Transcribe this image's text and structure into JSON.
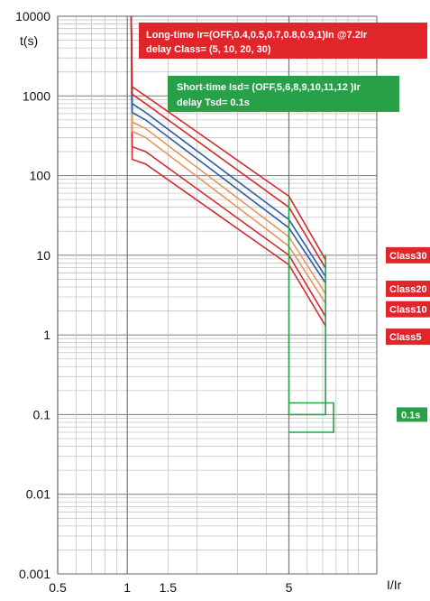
{
  "chart_data": {
    "type": "line",
    "title": "",
    "xlabel": "I/Ir",
    "ylabel": "t(s)",
    "x_scale": "log",
    "y_scale": "log",
    "xlim": [
      0.5,
      12
    ],
    "ylim": [
      0.001,
      10000
    ],
    "grid": true,
    "x_ticks": [
      {
        "value": 0.5,
        "label": "0.5"
      },
      {
        "value": 1,
        "label": "1"
      },
      {
        "value": 1.5,
        "label": "1.5"
      },
      {
        "value": 5,
        "label": "5"
      }
    ],
    "y_ticks": [
      {
        "value": 10000,
        "label": "10000"
      },
      {
        "value": 1000,
        "label": "1000"
      },
      {
        "value": 100,
        "label": "100"
      },
      {
        "value": 10,
        "label": "10"
      },
      {
        "value": 1,
        "label": "1"
      },
      {
        "value": 0.1,
        "label": "0.1"
      },
      {
        "value": 0.01,
        "label": "0.01"
      },
      {
        "value": 0.001,
        "label": "0.001"
      }
    ],
    "series": [
      {
        "color": "#d12b2e",
        "values": [
          [
            1.04,
            10000
          ],
          [
            1.05,
            160
          ],
          [
            1.2,
            140
          ],
          [
            5,
            7.6
          ],
          [
            7.2,
            1.3
          ]
        ]
      },
      {
        "color": "#d12b2e",
        "values": [
          [
            1.04,
            10000
          ],
          [
            1.05,
            230
          ],
          [
            1.2,
            200
          ],
          [
            5,
            10
          ],
          [
            7.2,
            1.7
          ]
        ]
      },
      {
        "color": "#e8945a",
        "values": [
          [
            1.04,
            10000
          ],
          [
            1.05,
            360
          ],
          [
            1.2,
            300
          ],
          [
            5,
            13
          ],
          [
            7.2,
            2.5
          ]
        ]
      },
      {
        "color": "#e8945a",
        "values": [
          [
            1.04,
            10000
          ],
          [
            1.05,
            470
          ],
          [
            1.2,
            390
          ],
          [
            5,
            17
          ],
          [
            7.2,
            3.3
          ]
        ]
      },
      {
        "color": "#2a5ca8",
        "values": [
          [
            1.04,
            10000
          ],
          [
            1.05,
            620
          ],
          [
            1.2,
            500
          ],
          [
            5,
            22
          ],
          [
            7.2,
            4.5
          ]
        ]
      },
      {
        "color": "#2a5ca8",
        "values": [
          [
            1.04,
            10000
          ],
          [
            1.05,
            800
          ],
          [
            1.2,
            620
          ],
          [
            5,
            28
          ],
          [
            7.2,
            5.4
          ]
        ]
      },
      {
        "color": "#d12b2e",
        "values": [
          [
            1.04,
            10000
          ],
          [
            1.05,
            1050
          ],
          [
            1.2,
            800
          ],
          [
            5,
            40
          ],
          [
            7.2,
            6.9
          ]
        ]
      },
      {
        "color": "#d12b2e",
        "values": [
          [
            1.04,
            10000
          ],
          [
            1.05,
            1300
          ],
          [
            1.2,
            1000
          ],
          [
            5,
            55
          ],
          [
            7.2,
            8.8
          ]
        ]
      }
    ],
    "short_time": {
      "color": "#27a048",
      "values": [
        [
          5,
          50
        ],
        [
          5,
          0.1
        ],
        [
          7.2,
          0.1
        ],
        [
          7.2,
          10
        ]
      ],
      "band": [
        [
          5,
          0.14
        ],
        [
          7.8,
          0.14
        ],
        [
          7.8,
          0.06
        ],
        [
          5,
          0.06
        ]
      ]
    },
    "annotations": {
      "long_time": {
        "line1": "Long-time  Ir=(OFF,0.4,0.5,0.7,0.8,0.9,1)In  @7.2Ir",
        "line2": "delay          Class= (5, 10, 20, 30)",
        "color": "#e0262a"
      },
      "short_time": {
        "line1": "Short-time   Isd= (OFF,5,6,8,9,10,11,12 )Ir",
        "line2": "delay          Tsd= 0.1s",
        "color": "#27a048"
      },
      "class_tags": [
        {
          "label": "Class30",
          "y": 10,
          "color": "#e0262a"
        },
        {
          "label": "Class20",
          "y": 3.8,
          "color": "#e0262a"
        },
        {
          "label": "Class10",
          "y": 2.1,
          "color": "#e0262a"
        },
        {
          "label": "Class5",
          "y": 0.95,
          "color": "#e0262a"
        }
      ],
      "tsd_tag": {
        "label": "0.1s",
        "y": 0.1,
        "color": "#27a048"
      }
    }
  }
}
